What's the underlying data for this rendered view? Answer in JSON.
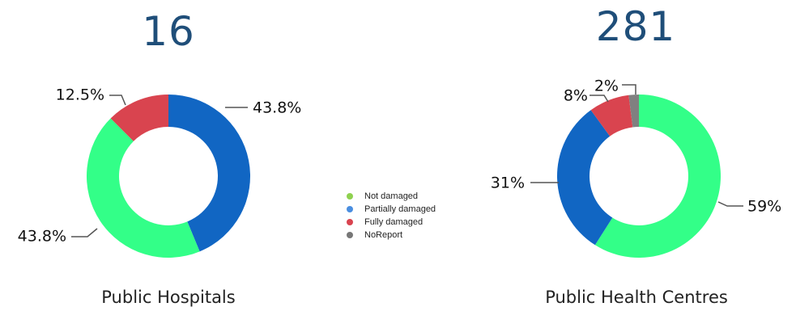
{
  "chart_data": [
    {
      "type": "pie",
      "title": "16",
      "caption": "Public Hospitals",
      "categories": [
        "Not damaged",
        "Partially damaged",
        "Fully damaged"
      ],
      "values": [
        43.8,
        43.8,
        12.5
      ],
      "labels": [
        "43.8%",
        "43.8%",
        "12.5%"
      ]
    },
    {
      "type": "pie",
      "title": "281",
      "caption": "Public Health Centres",
      "categories": [
        "Not damaged",
        "Partially damaged",
        "Fully damaged",
        "NoReport"
      ],
      "values": [
        59,
        31,
        8,
        2
      ],
      "labels": [
        "59%",
        "31%",
        "8%",
        "2%"
      ]
    }
  ],
  "legend": {
    "placement": "center",
    "items": [
      {
        "label": "Not damaged",
        "color": "#8fd14f"
      },
      {
        "label": "Partially damaged",
        "color": "#4a8ee0"
      },
      {
        "label": "Fully damaged",
        "color": "#d9444f"
      },
      {
        "label": "NoReport",
        "color": "#777777"
      }
    ]
  },
  "colors": {
    "Not damaged": "#33ff88",
    "Partially damaged": "#1166c3",
    "Fully damaged": "#d9444f",
    "NoReport": "#808080"
  }
}
